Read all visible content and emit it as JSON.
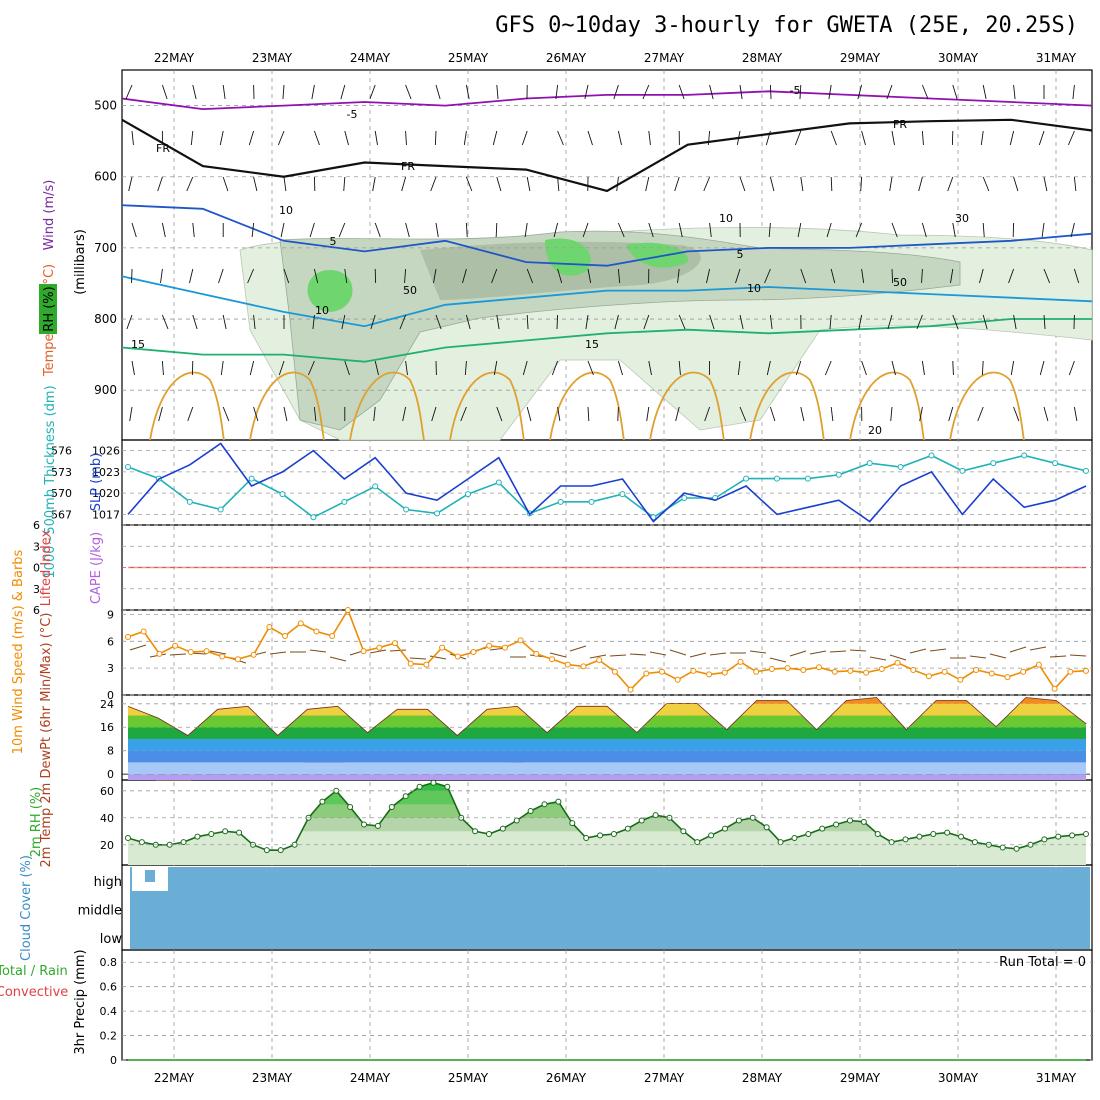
{
  "title": "GFS 0~10day 3-hourly for GWETA (25E, 20.25S)",
  "colors": {
    "wind": "#7a2aa0",
    "temp": "#e0602a",
    "rh": "#2faa2a",
    "slp": "#1a3fd0",
    "thick": "#1fb2b8",
    "li": "#e04040",
    "cape": "#b060e0",
    "wind10": "#f08c00",
    "barb10": "#7a4a1a",
    "cloud": "#6aaed6"
  },
  "chart_data": [
    {
      "type": "heatmap",
      "name": "Upper air cross-section",
      "panel_labels": {
        "wind": "Wind (m/s)",
        "temp": "Temperature (°C)",
        "rh": "RH (%)",
        "axis": "(millibars)"
      },
      "x_labels": [
        "22MAY",
        "23MAY",
        "24MAY",
        "25MAY",
        "26MAY",
        "27MAY",
        "28MAY",
        "29MAY",
        "30MAY",
        "31MAY"
      ],
      "y_ticks": [
        500,
        600,
        700,
        800,
        900
      ],
      "ylim": [
        450,
        970
      ],
      "contour_labels": [
        "-5",
        "-5",
        "FR",
        "FR",
        "FR",
        "5",
        "5",
        "10",
        "10",
        "15",
        "15",
        "20",
        "10",
        "10",
        "30",
        "50",
        "50"
      ],
      "isotherms": [
        {
          "label": "-5",
          "levels": [
            490,
            505,
            500,
            495,
            500,
            490,
            485,
            485,
            480,
            485,
            490,
            495,
            500
          ]
        },
        {
          "label": "FR",
          "levels": [
            520,
            585,
            600,
            580,
            585,
            590,
            620,
            555,
            540,
            525,
            522,
            520,
            535
          ]
        },
        {
          "label": "5",
          "levels": [
            640,
            645,
            690,
            705,
            690,
            720,
            725,
            705,
            700,
            700,
            695,
            690,
            680
          ]
        },
        {
          "label": "10",
          "levels": [
            740,
            765,
            790,
            810,
            780,
            770,
            760,
            760,
            755,
            760,
            765,
            770,
            775
          ]
        },
        {
          "label": "15",
          "levels": [
            840,
            850,
            850,
            860,
            840,
            830,
            820,
            815,
            820,
            815,
            810,
            800,
            800
          ]
        }
      ]
    },
    {
      "type": "line",
      "name": "SLP and 1000-500mb thickness",
      "ylabel_left": "1000~500mb Thickness (dm)",
      "ylabel_right": "SLP (mb)",
      "left_ticks": [
        "576",
        "573",
        "570",
        "567"
      ],
      "right_ticks": [
        "1026",
        "1023",
        "1020",
        "1017"
      ],
      "series": [
        {
          "name": "SLP (mb)",
          "values": [
            1017,
            1022,
            1024,
            1027,
            1021,
            1023,
            1026,
            1022,
            1025,
            1020,
            1019,
            1022,
            1025,
            1017,
            1021,
            1021,
            1022,
            1016,
            1020,
            1019,
            1021,
            1017,
            1018,
            1019,
            1016,
            1021,
            1023,
            1017,
            1022,
            1018,
            1019,
            1021
          ]
        },
        {
          "name": "Thickness (dm)",
          "values": [
            573.5,
            572,
            569,
            568,
            572,
            570,
            567,
            569,
            571,
            568,
            567.5,
            570,
            571.5,
            567.5,
            569,
            569,
            570,
            567,
            569.5,
            569.5,
            572,
            572,
            572,
            572.5,
            574,
            573.5,
            575,
            573,
            574,
            575,
            574,
            573
          ]
        }
      ]
    },
    {
      "type": "line",
      "name": "Lifted Index and CAPE",
      "ylabel": "Lifted Index",
      "ylabel2": "CAPE (J/kg)",
      "ticks": [
        "6",
        "3",
        "0",
        "3",
        "6"
      ],
      "ylim": [
        -6,
        6
      ],
      "values": [
        0,
        0,
        0,
        0,
        0,
        0,
        0,
        0,
        0,
        0
      ]
    },
    {
      "type": "line",
      "name": "10m Wind",
      "ylabel": "10m Wind Speed (m/s) & Barbs",
      "ticks": [
        "9",
        "6",
        "3",
        "0"
      ],
      "ylim": [
        0,
        9.5
      ],
      "values": [
        6.5,
        7.1,
        4.6,
        5.5,
        4.8,
        4.9,
        4.3,
        4.0,
        4.5,
        7.6,
        6.6,
        8.0,
        7.1,
        6.6,
        9.5,
        4.9,
        5.3,
        5.8,
        3.5,
        3.4,
        5.3,
        4.3,
        4.8,
        5.5,
        5.3,
        6.1,
        4.6,
        4.0,
        3.4,
        3.2,
        3.9,
        2.6,
        0.6,
        2.4,
        2.6,
        1.7,
        2.7,
        2.3,
        2.5,
        3.7,
        2.6,
        2.9,
        3.0,
        2.8,
        3.1,
        2.6,
        2.7,
        2.5,
        2.9,
        3.6,
        2.8,
        2.1,
        2.6,
        1.7,
        2.8,
        2.4,
        2.0,
        2.6,
        3.4,
        0.7,
        2.6,
        2.7
      ]
    },
    {
      "type": "area",
      "name": "2m Temperature and Dewpoint",
      "ylabel": "2m Temp 2m DewPt (6hr Min/Max) (°C)",
      "ticks": [
        "24",
        "16",
        "8",
        "0"
      ],
      "ylim": [
        -2,
        27
      ],
      "series": [
        {
          "name": "2m Temp",
          "values": [
            23,
            19,
            13,
            22,
            23,
            13,
            22,
            23,
            14,
            22,
            22,
            13,
            22,
            23,
            14,
            23,
            23,
            14,
            24,
            24,
            15,
            25,
            25,
            15,
            25,
            26,
            15,
            25,
            25,
            16,
            26,
            25,
            17
          ]
        },
        {
          "name": "2m DewPt",
          "values": [
            1,
            -2,
            -2,
            0,
            1,
            2,
            4,
            4,
            3,
            3,
            2,
            3,
            3,
            4,
            3,
            3,
            3,
            3,
            3,
            2,
            1,
            1,
            1,
            2,
            2,
            2,
            1,
            1,
            0,
            0,
            0,
            0,
            0
          ]
        }
      ]
    },
    {
      "type": "area",
      "name": "2m RH",
      "ylabel": "2m RH (%)",
      "ticks": [
        "60",
        "40",
        "20"
      ],
      "ylim": [
        5,
        68
      ],
      "values": [
        25,
        22,
        20,
        20,
        22,
        26,
        28,
        30,
        29,
        20,
        16,
        16,
        20,
        40,
        52,
        60,
        48,
        35,
        34,
        48,
        56,
        63,
        66,
        63,
        40,
        30,
        28,
        32,
        38,
        45,
        50,
        52,
        36,
        25,
        27,
        28,
        32,
        38,
        42,
        40,
        30,
        22,
        27,
        32,
        38,
        40,
        33,
        22,
        25,
        28,
        32,
        35,
        38,
        37,
        28,
        22,
        24,
        26,
        28,
        29,
        26,
        22,
        20,
        18,
        17,
        20,
        24,
        26,
        27,
        28
      ]
    },
    {
      "type": "bar",
      "name": "Cloud Cover",
      "ylabel": "Cloud Cover (%)",
      "categories": [
        "high",
        "middle",
        "low"
      ],
      "values": [
        100,
        100,
        100
      ]
    },
    {
      "type": "bar",
      "name": "3hr Precip",
      "ylabel": "3hr Precip (mm)",
      "ylabel2": "Total / Rain",
      "ylabel3": "Convective",
      "ticks": [
        "0.8",
        "0.6",
        "0.4",
        "0.2",
        "0"
      ],
      "ylim": [
        0,
        0.9
      ],
      "run_total": "Run Total = 0",
      "values": [
        0,
        0,
        0,
        0,
        0,
        0,
        0,
        0,
        0,
        0
      ]
    }
  ]
}
